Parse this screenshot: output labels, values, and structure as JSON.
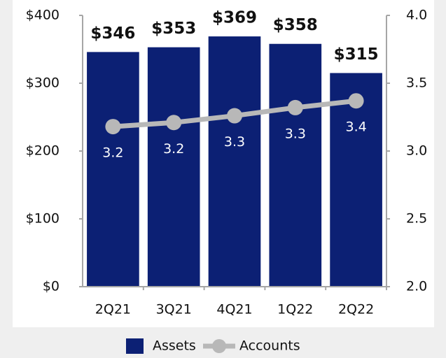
{
  "chart_data": {
    "type": "bar",
    "categories": [
      "2Q21",
      "3Q21",
      "4Q21",
      "1Q22",
      "2Q22"
    ],
    "series": [
      {
        "name": "Assets",
        "color": "#0c2074",
        "values": [
          346,
          353,
          369,
          358,
          315
        ],
        "value_labels": [
          "$346",
          "$353",
          "$369",
          "$358",
          "$315"
        ]
      },
      {
        "name": "Accounts",
        "type": "line",
        "axis": "y2",
        "color": "#b8b8b8",
        "values": [
          3.18,
          3.21,
          3.26,
          3.32,
          3.37
        ],
        "value_labels": [
          "3.2",
          "3.2",
          "3.3",
          "3.3",
          "3.4"
        ]
      }
    ],
    "ylim": [
      0,
      400
    ],
    "yticks": [
      {
        "value": 0,
        "label": "$0"
      },
      {
        "value": 100,
        "label": "$100"
      },
      {
        "value": 200,
        "label": "$200"
      },
      {
        "value": 300,
        "label": "$300"
      },
      {
        "value": 400,
        "label": "$400"
      }
    ],
    "y2lim": [
      2.0,
      4.0
    ],
    "y2ticks": [
      {
        "value": 2.0,
        "label": "2.0"
      },
      {
        "value": 2.5,
        "label": "2.5"
      },
      {
        "value": 3.0,
        "label": "3.0"
      },
      {
        "value": 3.5,
        "label": "3.5"
      },
      {
        "value": 4.0,
        "label": "4.0"
      }
    ],
    "legend": "bottom"
  }
}
